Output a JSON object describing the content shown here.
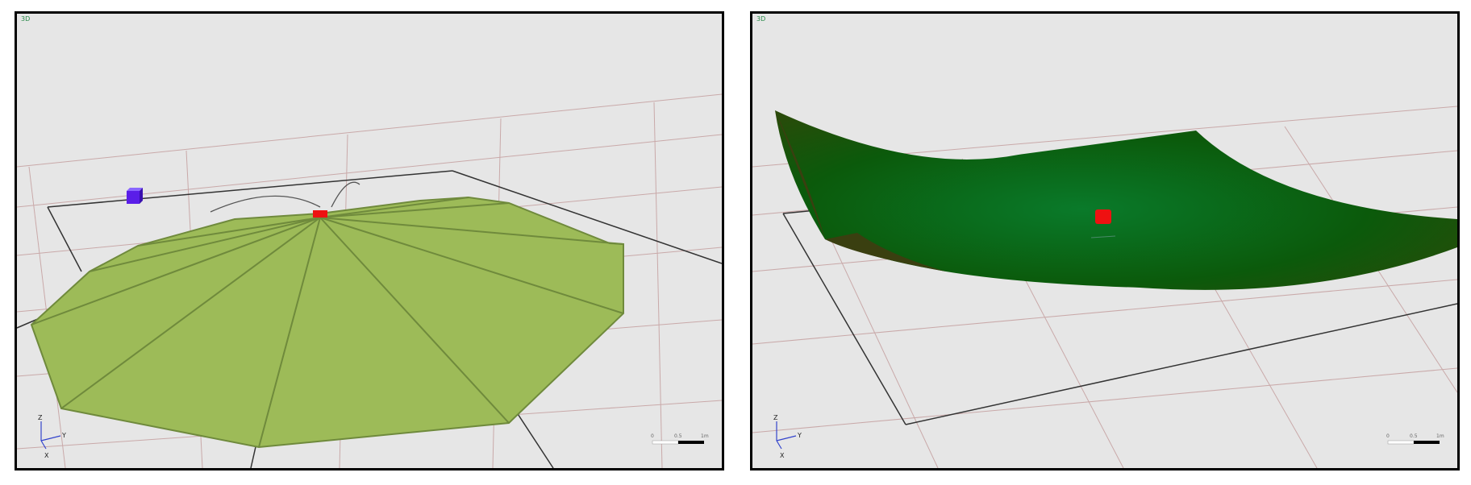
{
  "panels": [
    {
      "corner_label": "3D",
      "axes": {
        "z": "Z",
        "y": "Y",
        "x": "X"
      },
      "scale": {
        "start": "0",
        "mid": "0.5",
        "end": "1m"
      },
      "colors": {
        "surface": "#9dbb58",
        "edge": "#6f8a3c",
        "control_point": "#ee1111",
        "handle": "#5a1ee8"
      }
    },
    {
      "corner_label": "3D",
      "axes": {
        "z": "Z",
        "y": "Y",
        "x": "X"
      },
      "scale": {
        "start": "0",
        "mid": "0.5",
        "end": "1m"
      },
      "colors": {
        "surface": "#0a5e0a",
        "shade": "#3a3f10",
        "control_point": "#ee1111"
      }
    }
  ]
}
